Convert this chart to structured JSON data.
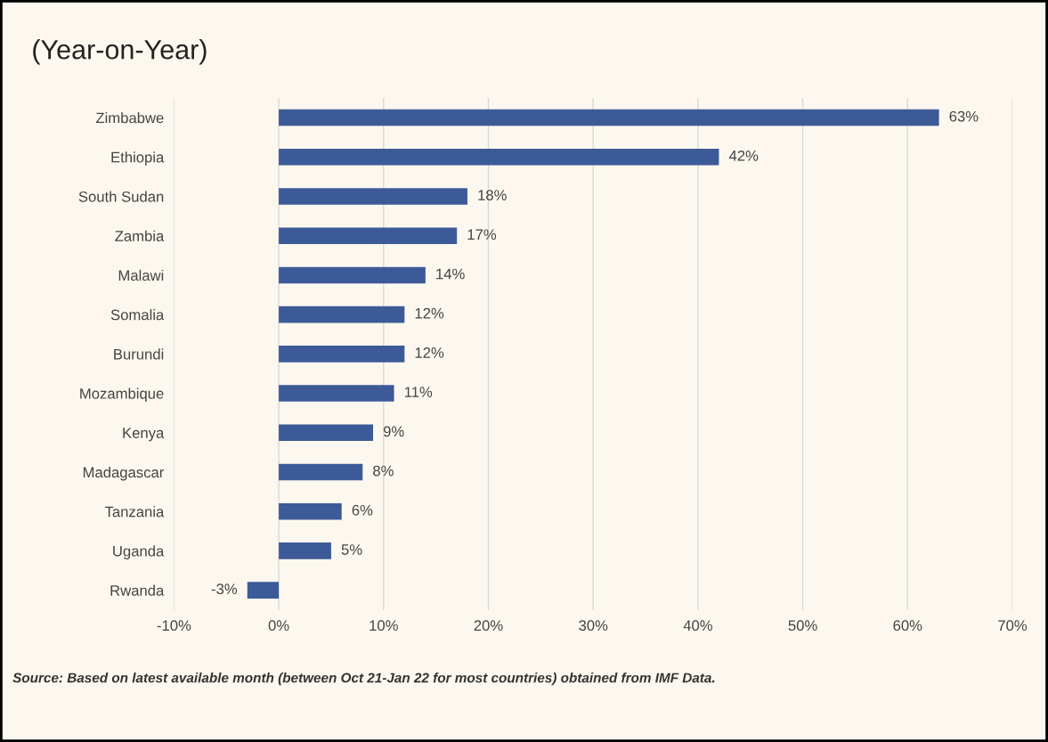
{
  "chart_data": {
    "type": "bar",
    "orientation": "horizontal",
    "title": "(Year-on-Year)",
    "categories": [
      "Zimbabwe",
      "Ethiopia",
      "South Sudan",
      "Zambia",
      "Malawi",
      "Somalia",
      "Burundi",
      "Mozambique",
      "Kenya",
      "Madagascar",
      "Tanzania",
      "Uganda",
      "Rwanda"
    ],
    "values": [
      63,
      42,
      18,
      17,
      14,
      12,
      12,
      11,
      9,
      8,
      6,
      5,
      -3
    ],
    "value_labels": [
      "63%",
      "42%",
      "18%",
      "17%",
      "14%",
      "12%",
      "12%",
      "11%",
      "9%",
      "8%",
      "6%",
      "5%",
      "-3%"
    ],
    "color": "#3d5a98",
    "xlim": [
      -10,
      70
    ],
    "xticks": [
      {
        "value": -10,
        "label": "-10%"
      },
      {
        "value": 0,
        "label": "0%"
      },
      {
        "value": 10,
        "label": "10%"
      },
      {
        "value": 20,
        "label": "20%"
      },
      {
        "value": 30,
        "label": "30%"
      },
      {
        "value": 40,
        "label": "40%"
      },
      {
        "value": 50,
        "label": "50%"
      },
      {
        "value": 60,
        "label": "60%"
      },
      {
        "value": 70,
        "label": "70%"
      }
    ],
    "grid": "x",
    "annotations": [
      "Source: Based on latest available month (between Oct 21-Jan 22 for most countries) obtained from IMF Data."
    ]
  }
}
